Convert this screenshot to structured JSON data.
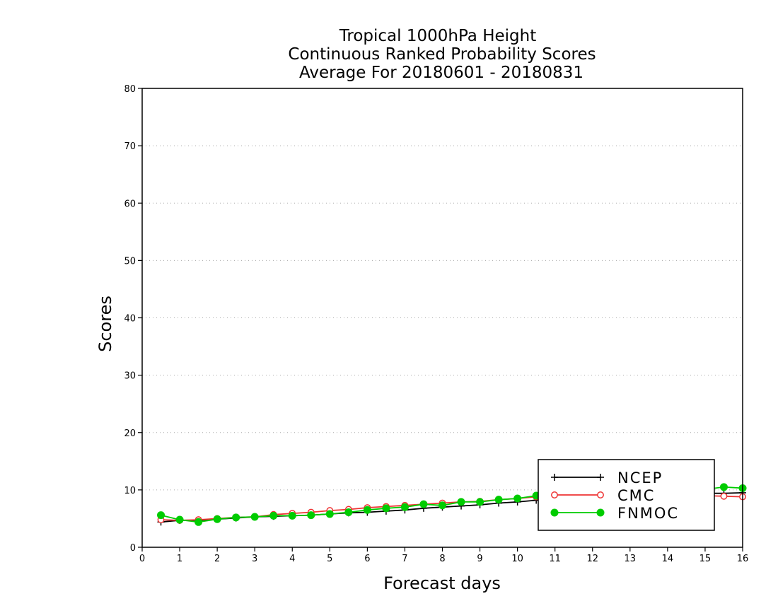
{
  "chart_data": {
    "type": "line",
    "title": [
      "Tropical 1000hPa Height",
      "Continuous Ranked Probability Scores",
      "Average For 20180601 - 20180831"
    ],
    "xlabel": "Forecast days",
    "ylabel": "Scores",
    "xlim": [
      0,
      16
    ],
    "ylim": [
      0,
      80
    ],
    "xticks": [
      0,
      1,
      2,
      3,
      4,
      5,
      6,
      7,
      8,
      9,
      10,
      11,
      12,
      13,
      14,
      15,
      16
    ],
    "yticks": [
      0,
      10,
      20,
      30,
      40,
      50,
      60,
      70,
      80
    ],
    "grid": "horizontal dotted",
    "legend_position": "bottom-right",
    "x": [
      0.5,
      1,
      1.5,
      2,
      2.5,
      3,
      3.5,
      4,
      4.5,
      5,
      5.5,
      6,
      6.5,
      7,
      7.5,
      8,
      8.5,
      9,
      9.5,
      10,
      10.5,
      11,
      11.5,
      12,
      12.5,
      13,
      13.5,
      14,
      14.5,
      15,
      15.5,
      16
    ],
    "series": [
      {
        "name": "NCEP",
        "color": "#000000",
        "marker": "plus",
        "values": [
          4.4,
          4.7,
          4.7,
          4.9,
          5.1,
          5.3,
          5.4,
          5.5,
          5.6,
          5.8,
          6.0,
          6.1,
          6.3,
          6.5,
          6.8,
          7.0,
          7.2,
          7.4,
          7.7,
          7.9,
          8.2,
          8.4,
          8.6,
          8.8,
          9.0,
          9.1,
          9.2,
          9.3,
          9.3,
          9.4,
          9.4,
          9.5
        ]
      },
      {
        "name": "CMC",
        "color": "#ee3333",
        "marker": "open-circle",
        "values": [
          4.8,
          4.7,
          4.8,
          5.0,
          5.2,
          5.3,
          5.7,
          5.9,
          6.1,
          6.4,
          6.6,
          6.9,
          7.1,
          7.3,
          7.5,
          7.7,
          7.9,
          8.0,
          8.3,
          8.5,
          8.8,
          9.0,
          9.1,
          9.2,
          9.1,
          9.0,
          9.0,
          9.0,
          9.0,
          9.0,
          8.9,
          8.8
        ]
      },
      {
        "name": "FNMOC",
        "color": "#00cc00",
        "marker": "filled-circle",
        "values": [
          5.6,
          4.8,
          4.4,
          4.9,
          5.2,
          5.3,
          5.5,
          5.5,
          5.6,
          5.8,
          6.1,
          6.5,
          6.8,
          7.0,
          7.5,
          7.3,
          7.9,
          7.9,
          8.3,
          8.5,
          9.0,
          9.2,
          9.4,
          9.5,
          9.6,
          9.7,
          9.8,
          9.9,
          10.0,
          10.1,
          10.5,
          10.3
        ]
      }
    ]
  }
}
